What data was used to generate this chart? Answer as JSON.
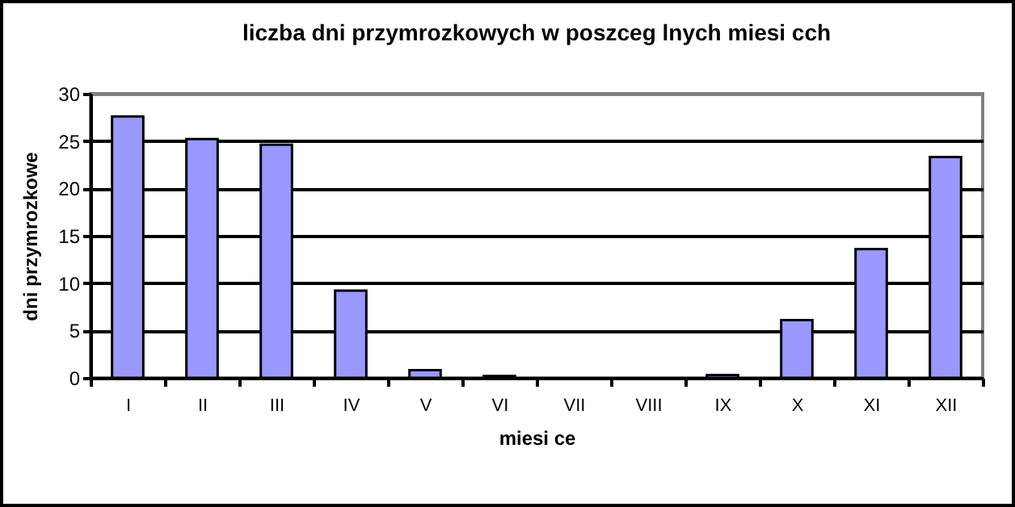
{
  "chart_data": {
    "type": "bar",
    "title": "liczba dni przymrozkowych w poszceg lnych miesi cch",
    "xlabel": "miesi ce",
    "ylabel": "dni przymrozkowe",
    "categories": [
      "I",
      "II",
      "III",
      "IV",
      "V",
      "VI",
      "VII",
      "VIII",
      "IX",
      "X",
      "XI",
      "XII"
    ],
    "values": [
      27.6,
      25.2,
      24.6,
      9.2,
      0.8,
      0.2,
      0,
      0,
      0.3,
      6.1,
      13.6,
      23.3
    ],
    "color": "#9999ff",
    "ylim": [
      0,
      30
    ],
    "yticks": [
      0,
      5,
      10,
      15,
      20,
      25,
      30
    ],
    "grid": "y"
  }
}
